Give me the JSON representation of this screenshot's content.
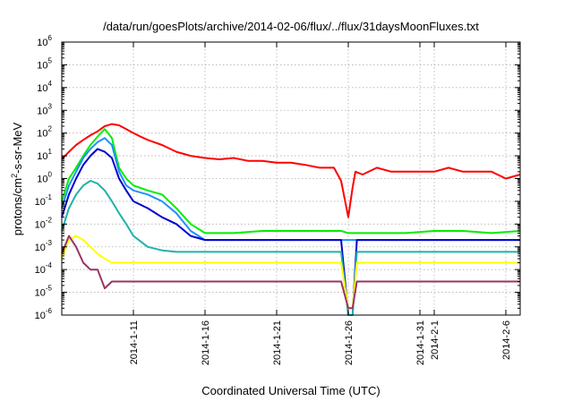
{
  "chart_data": {
    "type": "line",
    "title": "/data/run/goesPlots/archive/2014-02-06/flux/../flux/31daysMoonFluxes.txt",
    "xlabel": "Coordinated Universal Time (UTC)",
    "ylabel": "protons/cm2-s-sr-MeV",
    "ylabel_parts": {
      "base": "protons/cm",
      "sup": "2",
      "rest": "-s-sr-MeV"
    },
    "x_unit": "day of year offset from 2014-01-06 (UTC)",
    "xlim": [
      0,
      32
    ],
    "yscale": "log",
    "ylim": [
      1e-06,
      1000000
    ],
    "grid": true,
    "legend": "none",
    "x_ticks": [
      {
        "x": 5,
        "label": "2014-1-11"
      },
      {
        "x": 10,
        "label": "2014-1-16"
      },
      {
        "x": 15,
        "label": "2014-1-21"
      },
      {
        "x": 20,
        "label": "2014-1-26"
      },
      {
        "x": 25,
        "label": "2014-1-31"
      },
      {
        "x": 26,
        "label": "2014-2-1"
      },
      {
        "x": 31,
        "label": "2014-2-6"
      }
    ],
    "y_ticks": [
      {
        "exp": -6,
        "base": "10",
        "sup": "-6"
      },
      {
        "exp": -5,
        "base": "10",
        "sup": "-5"
      },
      {
        "exp": -4,
        "base": "10",
        "sup": "-4"
      },
      {
        "exp": -3,
        "base": "10",
        "sup": "-3"
      },
      {
        "exp": -2,
        "base": "10",
        "sup": "-2"
      },
      {
        "exp": -1,
        "base": "10",
        "sup": "-1"
      },
      {
        "exp": 0,
        "base": "10",
        "sup": "0"
      },
      {
        "exp": 1,
        "base": "10",
        "sup": "1"
      },
      {
        "exp": 2,
        "base": "10",
        "sup": "2"
      },
      {
        "exp": 3,
        "base": "10",
        "sup": "3"
      },
      {
        "exp": 4,
        "base": "10",
        "sup": "4"
      },
      {
        "exp": 5,
        "base": "10",
        "sup": "5"
      },
      {
        "exp": 6,
        "base": "10",
        "sup": "6"
      }
    ],
    "series": [
      {
        "color": "#ff0000",
        "x": [
          0,
          0.5,
          1,
          1.5,
          2,
          2.5,
          3,
          3.5,
          4,
          4.5,
          5,
          5.5,
          6,
          7,
          8,
          9,
          10,
          11,
          12,
          13,
          14,
          15,
          16,
          17,
          18,
          19,
          19.5,
          20,
          20.3,
          20.5,
          21,
          22,
          23,
          24,
          25,
          26,
          27,
          28,
          29,
          30,
          31,
          32
        ],
        "y": [
          7,
          15,
          30,
          50,
          80,
          120,
          200,
          250,
          220,
          150,
          100,
          70,
          50,
          30,
          15,
          10,
          8,
          7,
          8,
          6,
          6,
          5,
          5,
          4,
          3,
          3,
          0.8,
          0.02,
          0.4,
          2,
          1.5,
          3,
          2,
          2,
          2,
          2,
          3,
          2,
          2,
          2,
          1,
          1.5
        ]
      },
      {
        "color": "#00ee00",
        "x": [
          0,
          0.5,
          1,
          1.5,
          2,
          2.5,
          3,
          3.5,
          4,
          4.5,
          5,
          6,
          7,
          8,
          9,
          10,
          12,
          14,
          16,
          18,
          19,
          19.5,
          20,
          20.3,
          20.6,
          22,
          24,
          26,
          28,
          30,
          32
        ],
        "y": [
          0.1,
          1,
          3,
          10,
          30,
          70,
          150,
          60,
          3,
          1,
          0.5,
          0.3,
          0.2,
          0.05,
          0.01,
          0.004,
          0.004,
          0.005,
          0.005,
          0.005,
          0.005,
          0.005,
          0.004,
          0.004,
          0.004,
          0.004,
          0.004,
          0.005,
          0.005,
          0.004,
          0.005
        ]
      },
      {
        "color": "#1e90ff",
        "x": [
          0,
          0.5,
          1,
          1.5,
          2,
          2.5,
          3,
          3.5,
          4,
          4.5,
          5,
          6,
          7,
          8,
          9,
          10,
          12,
          14,
          16,
          18,
          19,
          19.5,
          20,
          20.3,
          20.6,
          22,
          24,
          26,
          28,
          30,
          32
        ],
        "y": [
          0.05,
          0.5,
          2,
          8,
          20,
          40,
          60,
          30,
          2,
          0.5,
          0.3,
          0.2,
          0.1,
          0.03,
          0.005,
          0.002,
          0.002,
          0.002,
          0.002,
          0.002,
          0.002,
          0.002,
          0.002,
          0.002,
          0.002,
          0.002,
          0.002,
          0.002,
          0.002,
          0.002,
          0.002
        ]
      },
      {
        "color": "#0000cd",
        "x": [
          0,
          0.5,
          1,
          1.5,
          2,
          2.5,
          3,
          3.5,
          4,
          4.5,
          5,
          6,
          7,
          8,
          9,
          10,
          12,
          14,
          16,
          18,
          19,
          19.5,
          20,
          20.3,
          20.6,
          22,
          24,
          26,
          28,
          30,
          32
        ],
        "y": [
          0.02,
          0.2,
          1,
          4,
          10,
          20,
          15,
          8,
          1,
          0.3,
          0.1,
          0.05,
          0.02,
          0.01,
          0.003,
          0.002,
          0.002,
          0.002,
          0.002,
          0.002,
          0.002,
          0.002,
          1e-06,
          1e-06,
          0.002,
          0.002,
          0.002,
          0.002,
          0.002,
          0.002,
          0.002
        ]
      },
      {
        "color": "#20b2aa",
        "x": [
          0,
          0.5,
          1,
          1.5,
          2,
          2.5,
          3,
          3.5,
          4,
          4.5,
          5,
          6,
          7,
          8,
          9,
          10,
          12,
          14,
          16,
          18,
          19,
          19.5,
          20,
          20.3,
          20.6,
          22,
          24,
          26,
          28,
          30,
          32
        ],
        "y": [
          0.005,
          0.05,
          0.2,
          0.5,
          0.8,
          0.6,
          0.3,
          0.1,
          0.03,
          0.01,
          0.003,
          0.001,
          0.0007,
          0.0006,
          0.0006,
          0.0006,
          0.0006,
          0.0006,
          0.0006,
          0.0006,
          0.0006,
          0.0006,
          1e-06,
          1e-06,
          0.0006,
          0.0006,
          0.0006,
          0.0006,
          0.0006,
          0.0006,
          0.0006
        ]
      },
      {
        "color": "#ffff00",
        "x": [
          0,
          0.5,
          1,
          1.5,
          2,
          2.5,
          3,
          3.5,
          4,
          4.5,
          5,
          6,
          7,
          8,
          9,
          10,
          12,
          14,
          16,
          18,
          19,
          19.5,
          20,
          20.3,
          20.6,
          22,
          24,
          26,
          28,
          30,
          32
        ],
        "y": [
          0.0003,
          0.002,
          0.003,
          0.002,
          0.001,
          0.0005,
          0.0003,
          0.0002,
          0.0002,
          0.0002,
          0.0002,
          0.0002,
          0.0002,
          0.0002,
          0.0002,
          0.0002,
          0.0002,
          0.0002,
          0.0002,
          0.0002,
          0.0002,
          0.0002,
          2e-06,
          2e-06,
          0.0002,
          0.0002,
          0.0002,
          0.0002,
          0.0002,
          0.0002,
          0.0002
        ]
      },
      {
        "color": "#993366",
        "x": [
          0,
          0.5,
          1,
          1.5,
          2,
          2.5,
          3,
          3.5,
          4,
          4.5,
          5,
          6,
          7,
          8,
          9,
          10,
          12,
          14,
          16,
          18,
          19,
          19.5,
          20,
          20.3,
          20.6,
          22,
          24,
          26,
          28,
          30,
          32
        ],
        "y": [
          0.0005,
          0.003,
          0.001,
          0.0002,
          0.0001,
          0.0001,
          1.5e-05,
          3e-05,
          3e-05,
          3e-05,
          3e-05,
          3e-05,
          3e-05,
          3e-05,
          3e-05,
          3e-05,
          3e-05,
          3e-05,
          3e-05,
          3e-05,
          3e-05,
          3e-05,
          2e-06,
          2e-06,
          3e-05,
          3e-05,
          3e-05,
          3e-05,
          3e-05,
          3e-05,
          3e-05
        ]
      }
    ]
  }
}
